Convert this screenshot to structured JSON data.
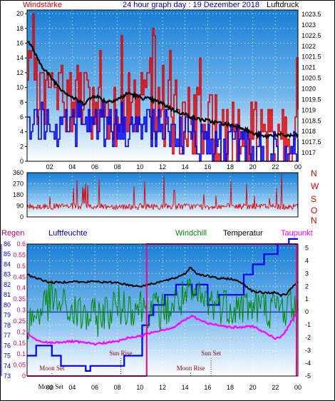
{
  "header": {
    "wind_label": "Windstärke",
    "title": "24 hour graph day : 19 Dezember 2018",
    "pressure_label": "Luftdruck"
  },
  "colors": {
    "wind": "#e00000",
    "gust": "#0000ee",
    "pressure": "#000000",
    "direction": "#dd0000",
    "humidity": "#0000ee",
    "windchill": "#008800",
    "temperature": "#000000",
    "dewpoint": "#ff00ff",
    "rain": "#cc0066",
    "axis_label_cyan": "#0000aa"
  },
  "chart_data": [
    {
      "type": "line",
      "name": "wind-and-pressure",
      "x_ticks": [
        "02",
        "04",
        "06",
        "08",
        "10",
        "12",
        "14",
        "16",
        "18",
        "20",
        "22",
        "00"
      ],
      "left_axis": {
        "label": "Windstärke",
        "ticks": [
          0,
          2,
          4,
          6,
          8,
          10,
          12,
          14,
          16,
          18,
          20
        ],
        "ylim": [
          0,
          20.5
        ]
      },
      "right_axis": {
        "label": "Luftdruck",
        "ticks": [
          "1017",
          "1017.5",
          "1018",
          "1018.5",
          "1019",
          "1019.5",
          "1020",
          "1020.5",
          "1021",
          "1021.5",
          "1022",
          "1022.5",
          "1023",
          "1023.5"
        ],
        "ylim": [
          1016.6,
          1023.7
        ]
      },
      "pressure_anchors": [
        [
          0,
          1022.3
        ],
        [
          0.5,
          1021.9
        ],
        [
          1,
          1021.3
        ],
        [
          2,
          1020.6
        ],
        [
          3,
          1020.0
        ],
        [
          4,
          1019.6
        ],
        [
          5,
          1019.3
        ],
        [
          6,
          1019.7
        ],
        [
          7,
          1019.4
        ],
        [
          8,
          1019.5
        ],
        [
          9,
          1019.8
        ],
        [
          10,
          1019.6
        ],
        [
          11,
          1019.5
        ],
        [
          12,
          1019.3
        ],
        [
          13,
          1019.0
        ],
        [
          14,
          1018.8
        ],
        [
          15,
          1018.6
        ],
        [
          16,
          1018.5
        ],
        [
          17,
          1018.4
        ],
        [
          18,
          1018.3
        ],
        [
          19,
          1018.2
        ],
        [
          20,
          1017.9
        ],
        [
          21,
          1017.75
        ],
        [
          22,
          1017.85
        ],
        [
          23,
          1017.8
        ],
        [
          24,
          1017.8
        ]
      ],
      "wind_level_anchors": [
        [
          0,
          10
        ],
        [
          2,
          9
        ],
        [
          4,
          8.5
        ],
        [
          6,
          7
        ],
        [
          8,
          7
        ],
        [
          10,
          8
        ],
        [
          12,
          7
        ],
        [
          14,
          5
        ],
        [
          16,
          5
        ],
        [
          18,
          3
        ],
        [
          20,
          2.5
        ],
        [
          22,
          3
        ],
        [
          24,
          4
        ]
      ],
      "gust_level_anchors": [
        [
          0,
          6
        ],
        [
          2,
          5
        ],
        [
          4,
          5
        ],
        [
          6,
          5
        ],
        [
          8,
          5
        ],
        [
          10,
          5
        ],
        [
          12,
          4
        ],
        [
          14,
          3
        ],
        [
          16,
          3
        ],
        [
          18,
          2
        ],
        [
          20,
          1
        ],
        [
          22,
          1
        ],
        [
          24,
          2
        ]
      ]
    },
    {
      "type": "scatter",
      "name": "wind-direction",
      "x_ticks": [
        "02",
        "04",
        "06",
        "08",
        "10",
        "12",
        "14",
        "16",
        "18",
        "20",
        "22",
        "00"
      ],
      "left_axis": {
        "ticks": [
          0,
          90,
          180,
          270,
          360
        ],
        "ylim": [
          0,
          360
        ]
      },
      "right_labels": [
        "N",
        "W",
        "S",
        "O",
        "N"
      ],
      "mean_deg": 85
    },
    {
      "type": "line",
      "name": "temperature-humidity",
      "x_ticks": [
        "02",
        "04",
        "06",
        "08",
        "10",
        "12",
        "14",
        "16",
        "18",
        "20",
        "22",
        "00"
      ],
      "labels": {
        "rain": "Regen",
        "humidity": "Luftfeuchte",
        "windchill": "Windchill",
        "temperature": "Temperatur",
        "dewpoint": "Taupunkt"
      },
      "rain_axis": {
        "ticks": [
          "0",
          "0.05",
          "0.1",
          "0.15",
          "0.2",
          "0.25",
          "0.3",
          "0.35",
          "0.4",
          "0.45",
          "0.5",
          "0.55",
          "0.6"
        ],
        "ylim": [
          0,
          0.6
        ]
      },
      "humidity_axis": {
        "ticks": [
          73,
          74,
          75,
          76,
          77,
          78,
          79,
          80,
          81,
          82,
          83,
          84,
          85,
          86
        ],
        "ylim": [
          73,
          86
        ]
      },
      "temp_axis": {
        "ticks": [
          -5,
          -4,
          -3,
          -2,
          -1,
          0,
          1,
          2,
          3,
          4,
          5
        ],
        "ylim": [
          -5,
          5.3
        ]
      },
      "temperature_anchors": [
        [
          0,
          2.9
        ],
        [
          1,
          2.6
        ],
        [
          2,
          2.3
        ],
        [
          3,
          2.3
        ],
        [
          4,
          2.4
        ],
        [
          5,
          2.3
        ],
        [
          6,
          2.4
        ],
        [
          7,
          2.3
        ],
        [
          8,
          2.3
        ],
        [
          9,
          2.1
        ],
        [
          10,
          2.0
        ],
        [
          11,
          2.2
        ],
        [
          12,
          2.4
        ],
        [
          13,
          2.6
        ],
        [
          14,
          3.0
        ],
        [
          14.5,
          3.5
        ],
        [
          15,
          3.0
        ],
        [
          16,
          2.8
        ],
        [
          17,
          2.6
        ],
        [
          18,
          2.6
        ],
        [
          19,
          2.3
        ],
        [
          20,
          1.6
        ],
        [
          21,
          1.5
        ],
        [
          22,
          1.5
        ],
        [
          22.5,
          1.3
        ],
        [
          23,
          1.4
        ],
        [
          24,
          2.4
        ]
      ],
      "dewpoint_anchors": [
        [
          0,
          -1.7
        ],
        [
          1,
          -2.3
        ],
        [
          2,
          -2.4
        ],
        [
          4,
          -2.3
        ],
        [
          6,
          -2.5
        ],
        [
          8,
          -2.3
        ],
        [
          9,
          -2.0
        ],
        [
          10,
          -1.9
        ],
        [
          11,
          -1.6
        ],
        [
          12,
          -1.4
        ],
        [
          13,
          -1.2
        ],
        [
          14,
          -0.6
        ],
        [
          14.7,
          -0.3
        ],
        [
          15,
          -0.5
        ],
        [
          16,
          -0.9
        ],
        [
          17,
          -1.0
        ],
        [
          18,
          -1.2
        ],
        [
          19,
          -1.2
        ],
        [
          20,
          -1.1
        ],
        [
          21,
          -1.6
        ],
        [
          22,
          -2.1
        ],
        [
          22.5,
          -1.9
        ],
        [
          23,
          -1.4
        ],
        [
          24,
          0.2
        ]
      ],
      "windchill_anchors": [
        [
          0,
          -1
        ],
        [
          2,
          1
        ],
        [
          4,
          0
        ],
        [
          6,
          -0.5
        ],
        [
          8,
          0.5
        ],
        [
          10,
          0.5
        ],
        [
          12,
          0
        ],
        [
          14,
          1.2
        ],
        [
          16,
          0.8
        ],
        [
          18,
          0.5
        ],
        [
          20,
          0.5
        ],
        [
          22,
          0.2
        ],
        [
          24,
          0.6
        ]
      ],
      "humidity_steps": [
        [
          0,
          75
        ],
        [
          0.8,
          76
        ],
        [
          2.2,
          75
        ],
        [
          3,
          74
        ],
        [
          5.2,
          73.5
        ],
        [
          5.6,
          74
        ],
        [
          7,
          74
        ],
        [
          8.6,
          75
        ],
        [
          10.2,
          78
        ],
        [
          10.8,
          79
        ],
        [
          11.2,
          80
        ],
        [
          12.2,
          81
        ],
        [
          13.2,
          82
        ],
        [
          14.6,
          81
        ],
        [
          15,
          82
        ],
        [
          16,
          80
        ],
        [
          17,
          81
        ],
        [
          18,
          81
        ],
        [
          19.2,
          83
        ],
        [
          20,
          84
        ],
        [
          21,
          85
        ],
        [
          22.2,
          86
        ],
        [
          23.2,
          86.5
        ],
        [
          24,
          86.5
        ]
      ],
      "rain_total": 0.6,
      "rain_start_hour": 10.6,
      "rain_end_hour": 11.7,
      "annotations": [
        {
          "text": "Sun Rise",
          "hour": 8.3
        },
        {
          "text": "Sun Set",
          "hour": 16.3
        },
        {
          "text": "Moon Set",
          "hour": 2.2
        },
        {
          "text": "Moon Rise",
          "hour": 14.5
        },
        {
          "text": "Moon Set",
          "hour": 2.1,
          "row": "axis"
        }
      ]
    }
  ]
}
